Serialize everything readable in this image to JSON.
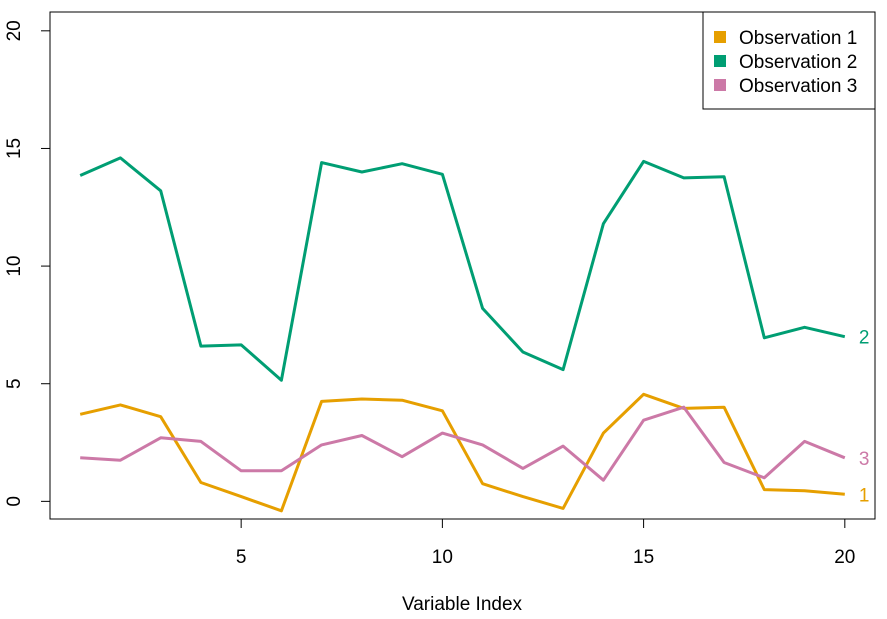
{
  "chart_data": {
    "type": "line",
    "title": "",
    "xlabel": "Variable Index",
    "ylabel": "",
    "xlim": [
      0.25,
      20.75
    ],
    "ylim": [
      -0.75,
      20.8
    ],
    "grid": false,
    "legend_position": "top-right",
    "x": [
      1,
      2,
      3,
      4,
      5,
      6,
      7,
      8,
      9,
      10,
      11,
      12,
      13,
      14,
      15,
      16,
      17,
      18,
      19,
      20
    ],
    "x_ticks": [
      5,
      10,
      15,
      20
    ],
    "x_tick_labels": [
      "5",
      "10",
      "15",
      "20"
    ],
    "y_ticks": [
      0,
      5,
      10,
      15,
      20
    ],
    "y_tick_labels": [
      "0",
      "5",
      "10",
      "15",
      "20"
    ],
    "series": [
      {
        "name": "Observation 1",
        "end_label": "1",
        "color": "#E69F00",
        "values": [
          3.7,
          4.1,
          3.6,
          0.8,
          0.2,
          -0.4,
          4.25,
          4.35,
          4.3,
          3.85,
          0.75,
          0.2,
          -0.3,
          2.9,
          4.55,
          3.95,
          4.0,
          0.5,
          0.45,
          0.3
        ]
      },
      {
        "name": "Observation 2",
        "end_label": "2",
        "color": "#009E73",
        "values": [
          13.85,
          14.6,
          13.2,
          6.6,
          6.65,
          5.15,
          14.4,
          14.0,
          14.35,
          13.9,
          8.2,
          6.35,
          5.6,
          11.8,
          14.45,
          13.75,
          13.8,
          6.95,
          7.4,
          7.0
        ]
      },
      {
        "name": "Observation 3",
        "end_label": "3",
        "color": "#CC79A7",
        "values": [
          1.85,
          1.75,
          2.7,
          2.55,
          1.3,
          1.3,
          2.4,
          2.8,
          1.9,
          2.9,
          2.4,
          1.4,
          2.35,
          0.9,
          3.45,
          4.0,
          1.65,
          1.0,
          2.55,
          1.85
        ]
      }
    ]
  }
}
